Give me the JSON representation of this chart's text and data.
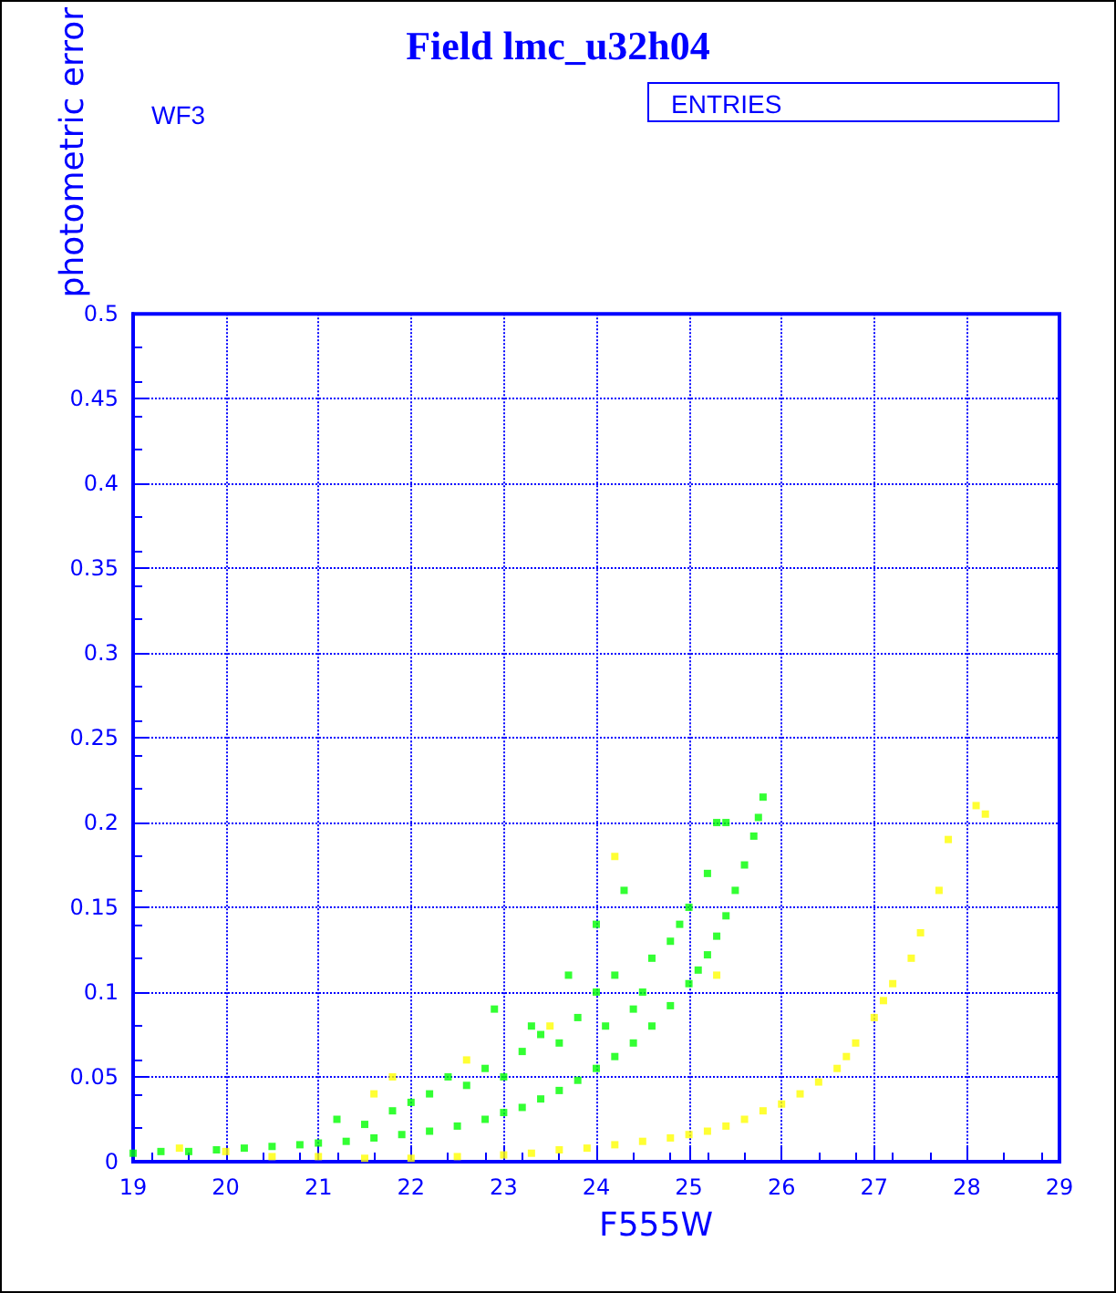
{
  "chart_data": {
    "type": "scatter",
    "title": "Field lmc_u32h04",
    "xlabel": "F555W",
    "ylabel": "photometric error",
    "annotations": [
      "WF3",
      "ENTRIES"
    ],
    "xlim": [
      19,
      29
    ],
    "xticks": [
      19,
      20,
      21,
      22,
      23,
      24,
      25,
      26,
      27,
      28,
      29
    ],
    "ylim": [
      0,
      0.5
    ],
    "yticks": [
      0,
      0.05,
      0.1,
      0.15,
      0.2,
      0.25,
      0.3,
      0.35,
      0.4,
      0.45,
      0.5
    ],
    "grid": true,
    "marker": "square",
    "series": [
      {
        "color": "#00ff00",
        "x": [
          19.0,
          19.3,
          19.6,
          19.9,
          20.2,
          20.5,
          20.8,
          21.0,
          21.3,
          21.6,
          21.9,
          22.2,
          22.5,
          22.8,
          23.0,
          23.2,
          23.4,
          23.6,
          23.8,
          24.0,
          24.2,
          24.4,
          24.6,
          24.8,
          25.0,
          25.1,
          25.2,
          25.3,
          25.4,
          25.5,
          25.6,
          25.7,
          25.75,
          25.8,
          21.2,
          21.5,
          21.8,
          22.0,
          22.2,
          22.4,
          22.6,
          22.8,
          23.0,
          23.2,
          23.4,
          23.6,
          23.8,
          24.0,
          24.0,
          24.2,
          24.4,
          24.6,
          24.8,
          25.0,
          25.2,
          25.4,
          22.9,
          23.3,
          23.7,
          24.1,
          24.5,
          24.9,
          25.3,
          24.3
        ],
        "values": [
          0.005,
          0.006,
          0.006,
          0.007,
          0.008,
          0.009,
          0.01,
          0.011,
          0.012,
          0.014,
          0.016,
          0.018,
          0.021,
          0.025,
          0.029,
          0.032,
          0.037,
          0.042,
          0.048,
          0.055,
          0.062,
          0.07,
          0.08,
          0.092,
          0.105,
          0.113,
          0.122,
          0.133,
          0.145,
          0.16,
          0.175,
          0.192,
          0.203,
          0.215,
          0.025,
          0.022,
          0.03,
          0.035,
          0.04,
          0.05,
          0.045,
          0.055,
          0.05,
          0.065,
          0.075,
          0.07,
          0.085,
          0.14,
          0.1,
          0.11,
          0.09,
          0.12,
          0.13,
          0.15,
          0.17,
          0.2,
          0.09,
          0.08,
          0.11,
          0.08,
          0.1,
          0.14,
          0.2,
          0.16
        ]
      },
      {
        "color": "#ffff00",
        "x": [
          19.5,
          20.0,
          20.5,
          21.0,
          21.5,
          22.0,
          22.5,
          23.0,
          23.3,
          23.6,
          23.9,
          24.2,
          24.5,
          24.8,
          25.0,
          25.2,
          25.4,
          25.6,
          25.8,
          26.0,
          26.2,
          26.4,
          26.6,
          26.7,
          26.8,
          27.0,
          27.1,
          27.2,
          27.4,
          27.5,
          27.7,
          27.8,
          28.1,
          28.2,
          21.6,
          21.8,
          22.6,
          23.5,
          24.2,
          25.3
        ],
        "values": [
          0.008,
          0.006,
          0.003,
          0.003,
          0.002,
          0.002,
          0.003,
          0.004,
          0.005,
          0.007,
          0.008,
          0.01,
          0.012,
          0.014,
          0.016,
          0.018,
          0.021,
          0.025,
          0.03,
          0.034,
          0.04,
          0.047,
          0.055,
          0.062,
          0.07,
          0.085,
          0.095,
          0.105,
          0.12,
          0.135,
          0.16,
          0.19,
          0.21,
          0.205,
          0.04,
          0.05,
          0.06,
          0.08,
          0.18,
          0.11
        ]
      }
    ]
  }
}
